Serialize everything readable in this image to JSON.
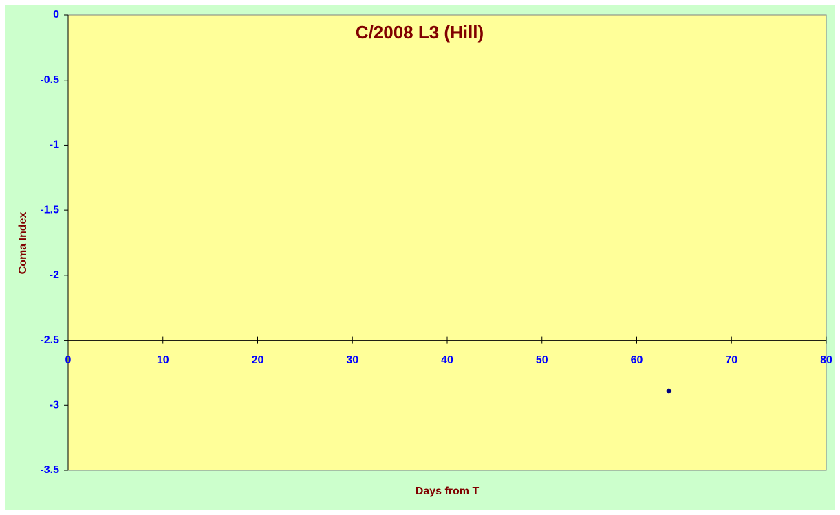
{
  "chart_data": {
    "type": "scatter",
    "title": "C/2008 L3 (Hill)",
    "x_label": "Days from T",
    "y_label": "Coma Index",
    "x": [
      63.4
    ],
    "values": [
      -2.89
    ],
    "color": "#000080",
    "xlim": [
      0,
      80
    ],
    "xticks": [
      0,
      10,
      20,
      30,
      40,
      50,
      60,
      70,
      80
    ],
    "ylim": [
      -3.5,
      0
    ],
    "yticks": [
      -3.5,
      -3,
      -2.5,
      -2,
      -1.5,
      -1,
      -0.5,
      0
    ],
    "x_axis_crosses_at": -2.5
  }
}
